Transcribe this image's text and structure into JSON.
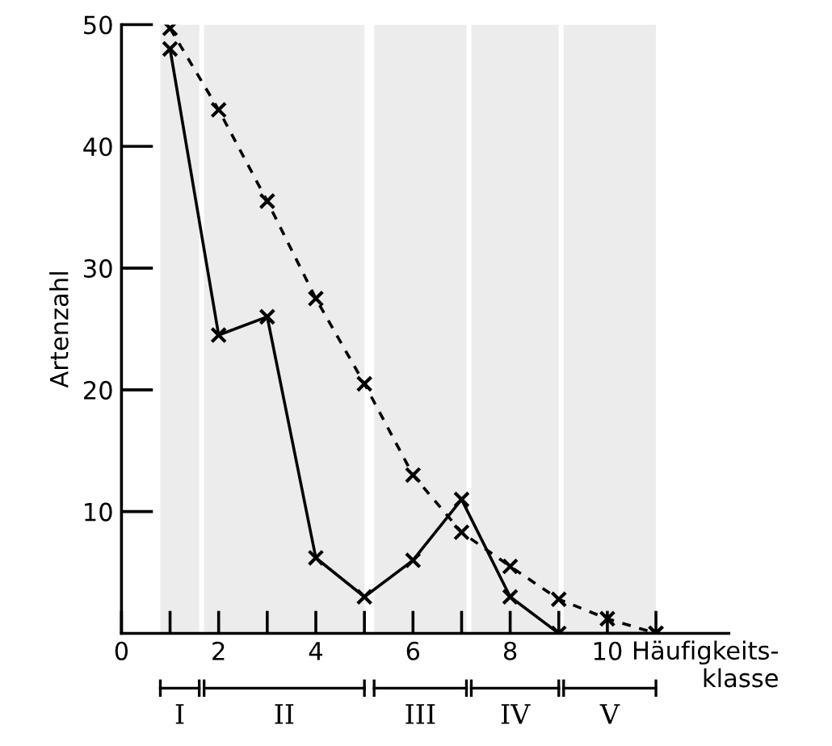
{
  "chart_data": {
    "type": "line",
    "xlabel": "Häufigkeits-\nklasse",
    "ylabel": "Artenzahl",
    "series": [
      {
        "color": "#000000",
        "line_style": "solid",
        "x": [
          1,
          2,
          3,
          4,
          5,
          6,
          7,
          8,
          9,
          11
        ],
        "values": [
          48,
          24.5,
          26,
          6.2,
          3,
          6,
          11,
          3,
          0,
          0
        ]
      },
      {
        "color": "#000000",
        "line_style": "dashed",
        "x": [
          1,
          2,
          3,
          4,
          5,
          6,
          7,
          8,
          9,
          10,
          11
        ],
        "values": [
          49.7,
          43,
          35.5,
          27.5,
          20.5,
          13,
          8.3,
          5.5,
          2.8,
          1.2,
          0
        ]
      }
    ],
    "marker": "cross",
    "xlim": [
      0,
      12.5
    ],
    "ylim": [
      0,
      50
    ],
    "xticks": [
      0,
      {
        "value": 1,
        "label": null
      },
      2,
      {
        "value": 3,
        "label": null
      },
      4,
      {
        "value": 5,
        "label": null
      },
      6,
      {
        "value": 7,
        "label": null
      },
      8,
      {
        "value": 9,
        "label": null
      },
      10,
      {
        "value": 11,
        "label": null
      }
    ],
    "yticks": [
      10,
      20,
      30,
      40,
      50
    ],
    "bands": [
      {
        "axis": "x",
        "from": 0.8,
        "to": 1.6,
        "label": "I",
        "color": "#ececec"
      },
      {
        "axis": "x",
        "from": 1.7,
        "to": 5.0,
        "label": "II",
        "color": "#ececec"
      },
      {
        "axis": "x",
        "from": 5.2,
        "to": 7.1,
        "label": "III",
        "color": "#ececec"
      },
      {
        "axis": "x",
        "from": 7.2,
        "to": 9.0,
        "label": "IV",
        "color": "#ececec"
      },
      {
        "axis": "x",
        "from": 9.1,
        "to": 11.0,
        "label": "V",
        "color": "#ececec"
      }
    ],
    "grid": false,
    "legend": false
  }
}
